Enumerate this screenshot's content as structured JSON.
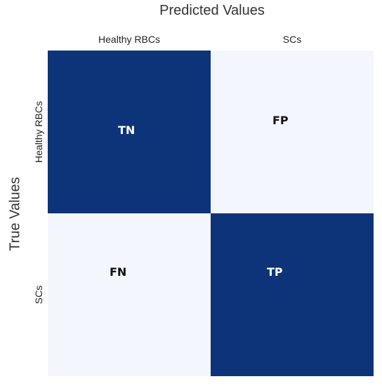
{
  "x_axis_title": "Predicted Values",
  "y_axis_title": "True Values",
  "columns": [
    "Healthy RBCs",
    "SCs"
  ],
  "rows": [
    "Healthy RBCs",
    "SCs"
  ],
  "cells": [
    {
      "label": "TN",
      "shade": "dark"
    },
    {
      "label": "FP",
      "shade": "light"
    },
    {
      "label": "FN",
      "shade": "light"
    },
    {
      "label": "TP",
      "shade": "dark"
    }
  ],
  "colors": {
    "dark": "#0d3378",
    "light": "#f3f6fd",
    "dark_text": "#ffffff",
    "light_text": "#111111"
  }
}
